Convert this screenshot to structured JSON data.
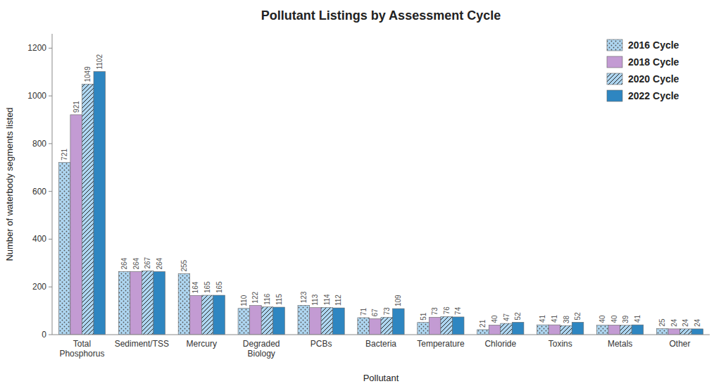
{
  "chart_data": {
    "type": "bar",
    "title": "Pollutant Listings by Assessment Cycle",
    "xlabel": "Pollutant",
    "ylabel": "Number of waterbody segments listed",
    "categories": [
      "Total\nPhosphorus",
      "Sediment/TSS",
      "Mercury",
      "Degraded\nBiology",
      "PCBs",
      "Bacteria",
      "Temperature",
      "Chloride",
      "Toxins",
      "Metals",
      "Other"
    ],
    "series": [
      {
        "name": "2016 Cycle",
        "color": "#aed6f1",
        "values": [
          721,
          264,
          255,
          110,
          123,
          71,
          51,
          21,
          41,
          40,
          25
        ]
      },
      {
        "name": "2018 Cycle",
        "color": "#c39bd3",
        "values": [
          921,
          264,
          164,
          122,
          113,
          67,
          73,
          40,
          41,
          40,
          24
        ]
      },
      {
        "name": "2020 Cycle",
        "color": "#aed6f1",
        "values": [
          1049,
          267,
          165,
          116,
          114,
          73,
          76,
          47,
          38,
          39,
          24
        ]
      },
      {
        "name": "2022 Cycle",
        "color": "#2e86c1",
        "values": [
          1102,
          264,
          165,
          115,
          112,
          109,
          74,
          52,
          52,
          41,
          24
        ]
      }
    ],
    "ylim": [
      0,
      1260
    ],
    "yticks": [
      0,
      200,
      400,
      600,
      800,
      1000,
      1200
    ],
    "grid": false,
    "legend": "upper right",
    "data_labels": true
  }
}
